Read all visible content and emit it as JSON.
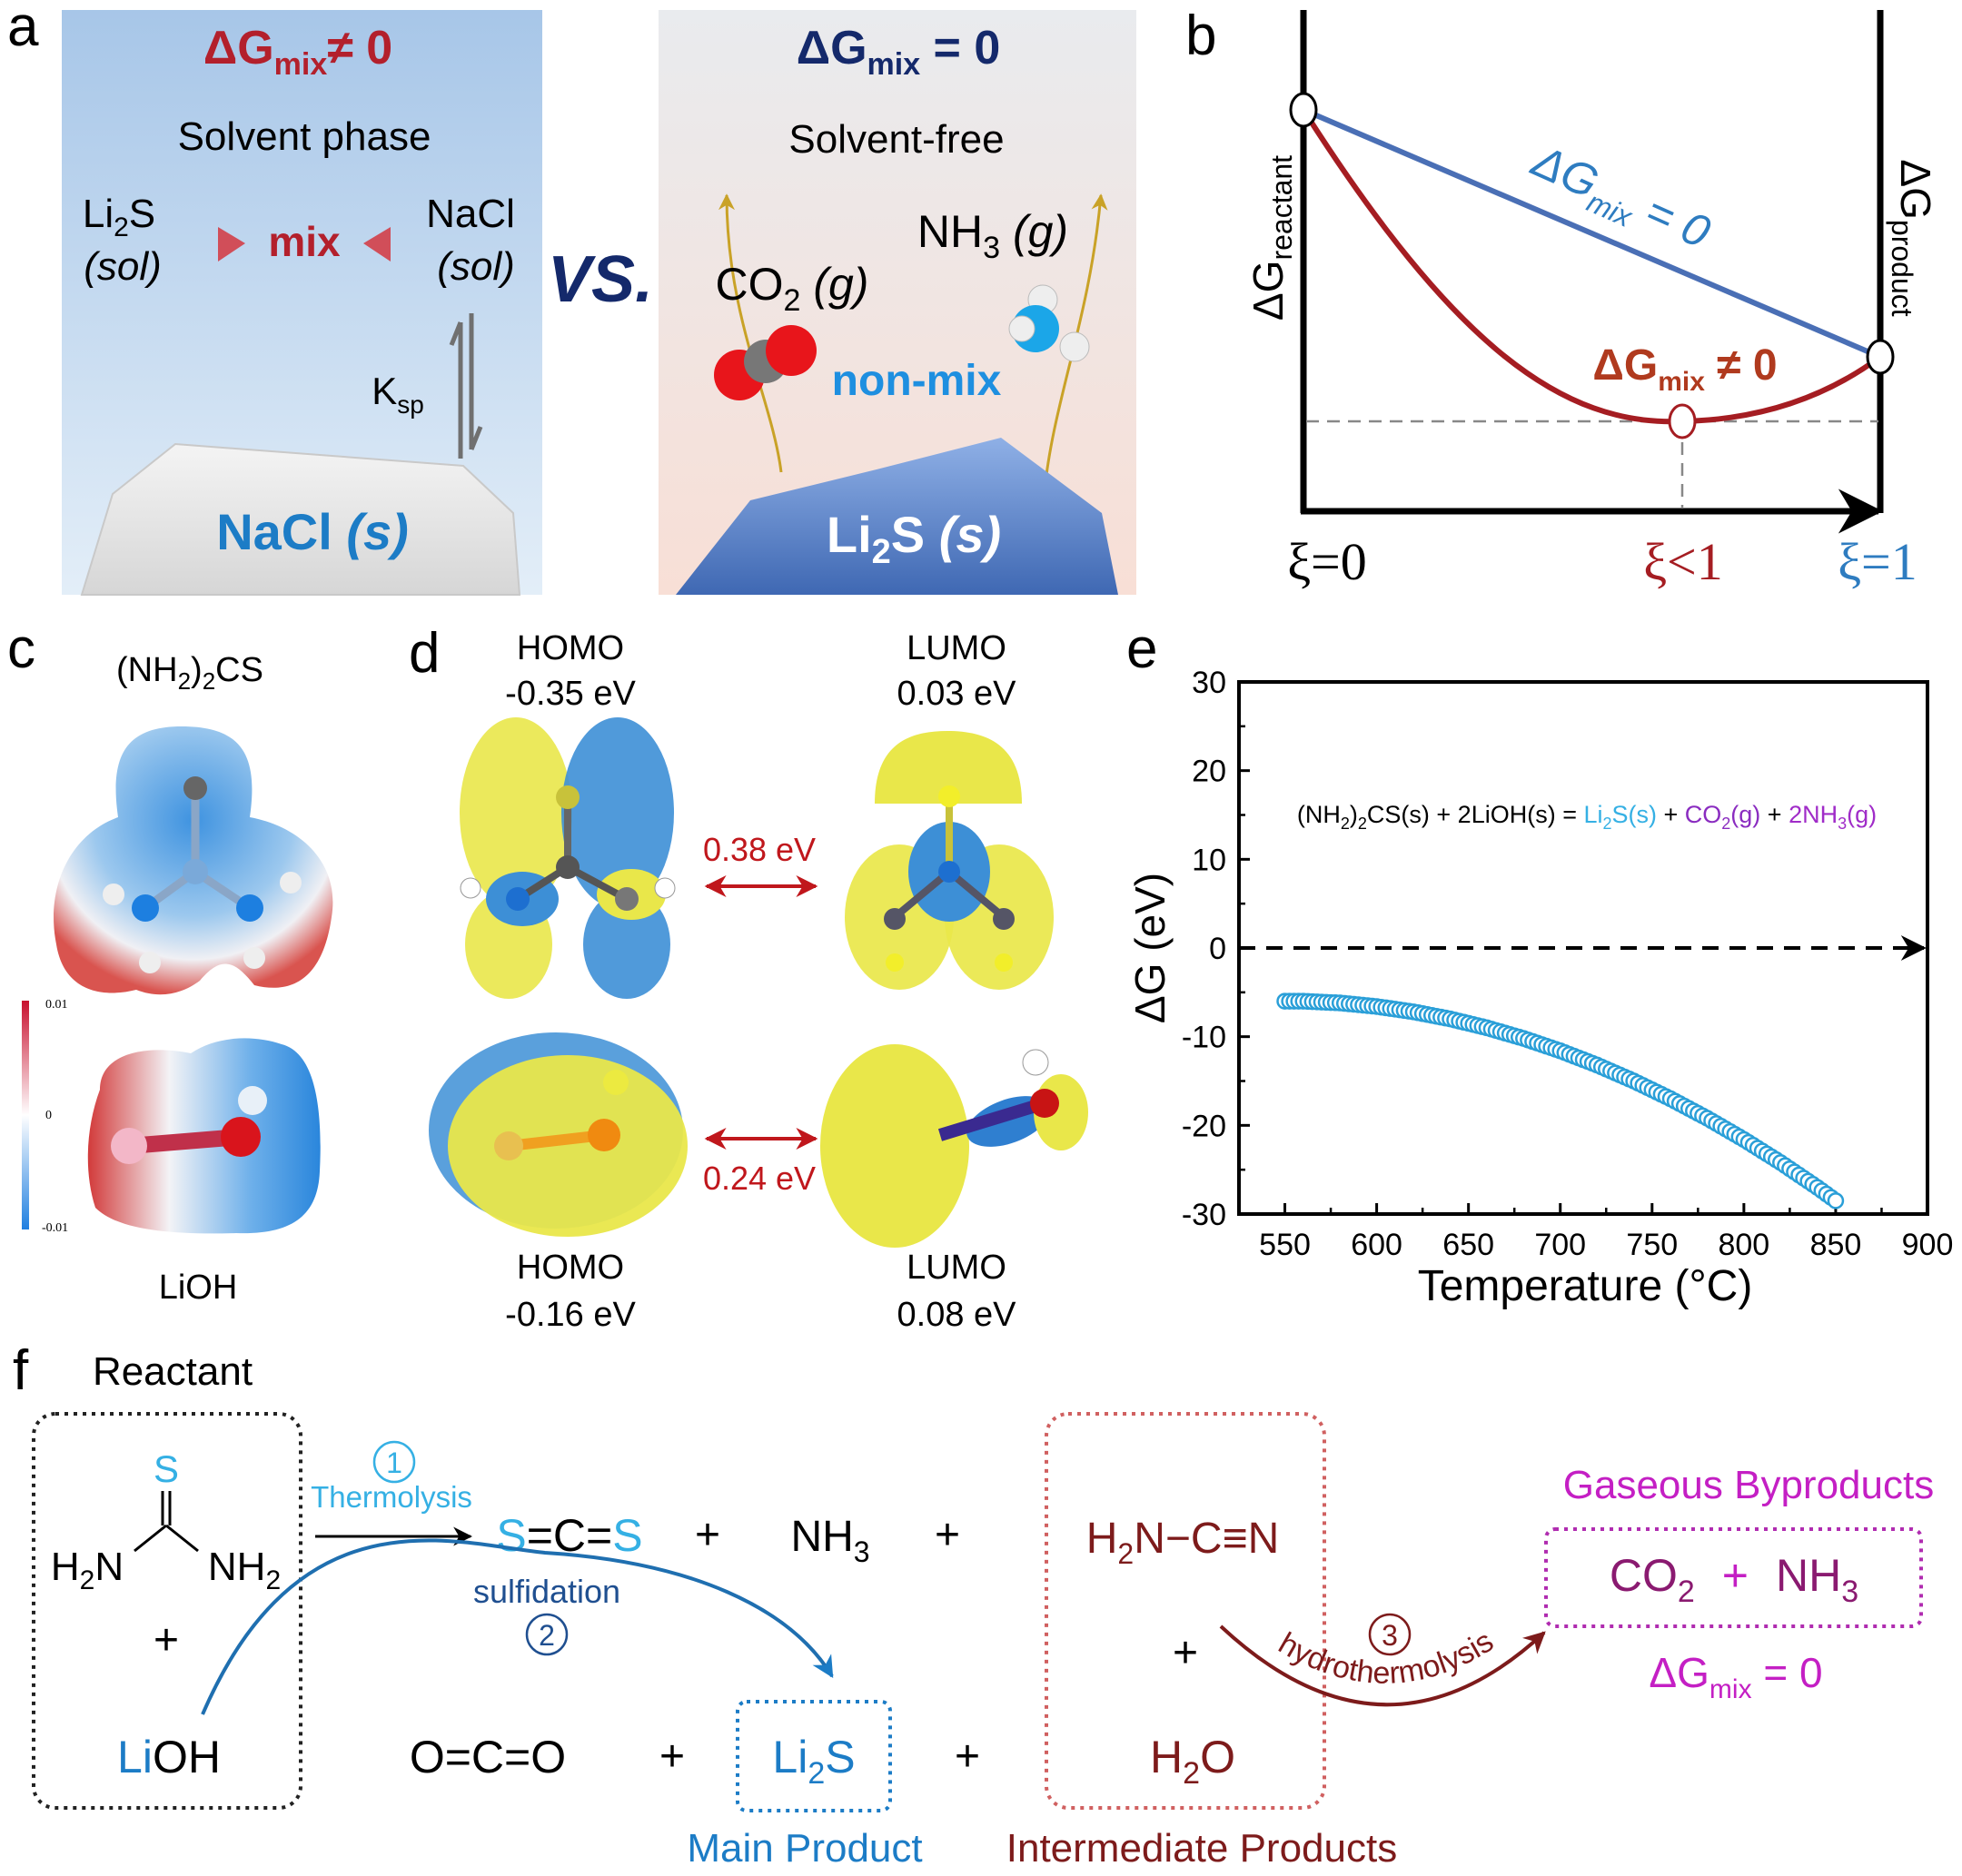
{
  "panel_labels": {
    "a": "a",
    "b": "b",
    "c": "c",
    "d": "d",
    "e": "e",
    "f": "f"
  },
  "colors": {
    "red": "#b3202c",
    "navy": "#14296b",
    "blue": "#1c7cc6",
    "cyan": "#35b0e4",
    "dark_red": "#7d1b1b",
    "magenta": "#c41fc4",
    "curve_blue": "#4a6fb5",
    "curve_red": "#a51d22",
    "marker": "#2a9fd8"
  },
  "panel_a": {
    "left": {
      "dg": "ΔG",
      "dg_sub": "mix",
      "dg_rest": "≠ 0",
      "phase": "Solvent phase",
      "li2s_a": "Li",
      "li2s_sub": "2",
      "li2s_b": "S",
      "sol_left": "(sol)",
      "mix": "mix",
      "nacl": "NaCl",
      "sol_right": "(sol)",
      "k": "K",
      "k_sub": "sp",
      "solid_name": "NaCl ",
      "solid_state": "(s)"
    },
    "vs": "VS.",
    "right": {
      "dg": "ΔG",
      "dg_sub": "mix",
      "dg_rest": " = 0",
      "phase": "Solvent-free",
      "co2_a": "CO",
      "co2_sub": "2",
      "co2_state": " (g)",
      "nh3_a": "NH",
      "nh3_sub": "3",
      "nh3_state": " (g)",
      "nonmix": "non-mix",
      "solid_a": "Li",
      "solid_sub": "2",
      "solid_b": "S ",
      "solid_state": "(s)"
    }
  },
  "panel_b": {
    "reactant_main": "ΔG",
    "reactant_sub": "reactant",
    "product_main": "ΔG",
    "product_sub": "product",
    "line_blue": {
      "main": "ΔG",
      "sub": "mix",
      "rest": " = 0"
    },
    "line_red": {
      "main": "ΔG",
      "sub": "mix",
      "rest": " ≠ 0"
    },
    "xi0": "ξ=0",
    "xi_lt1": "ξ<1",
    "xi1": "ξ=1"
  },
  "panel_c": {
    "mol1_a": "(NH",
    "mol1_sub1": "2",
    "mol1_b": ")",
    "mol1_sub2": "2",
    "mol1_c": "CS",
    "mol2": "LiOH",
    "colorbar": {
      "max": "0.01",
      "mid": "0",
      "min": "-0.01"
    }
  },
  "panel_d": {
    "top": {
      "homo": "HOMO",
      "homo_e": "-0.35 eV",
      "lumo": "LUMO",
      "lumo_e": "0.03 eV",
      "gap": "0.38 eV"
    },
    "bottom": {
      "homo": "HOMO",
      "homo_e": "-0.16 eV",
      "lumo": "LUMO",
      "lumo_e": "0.08 eV",
      "gap": "0.24 eV"
    }
  },
  "chart_data": {
    "type": "scatter",
    "xlabel": "Temperature (°C)",
    "ylabel": "ΔG (eV)",
    "xlim": [
      525,
      900
    ],
    "ylim": [
      -30,
      30
    ],
    "xticks": [
      550,
      600,
      650,
      700,
      750,
      800,
      850,
      900
    ],
    "yticks": [
      -30,
      -20,
      -10,
      0,
      10,
      20,
      30
    ],
    "reference_line": {
      "y": 0,
      "style": "dashed",
      "arrow": true
    },
    "annotation": {
      "a": "(NH",
      "sub1": "2",
      "b": ")",
      "sub2": "2",
      "c": "CS(s) + 2LiOH(s) = ",
      "li": "Li",
      "li_sub": "2",
      "li_b": "S(s)",
      "p1": " + ",
      "co": "CO",
      "co_sub": "2",
      "co_b": "(g)",
      "p2": " + ",
      "nh": "2NH",
      "nh_sub": "3",
      "nh_b": "(g)"
    },
    "grid": false,
    "marker": "open-circle",
    "x": [
      550,
      560,
      570,
      580,
      590,
      600,
      610,
      620,
      630,
      640,
      650,
      660,
      670,
      680,
      690,
      700,
      710,
      720,
      730,
      740,
      750,
      760,
      770,
      780,
      790,
      800,
      810,
      820,
      830,
      840,
      850
    ],
    "y": [
      -6.0,
      -6.0,
      -6.1,
      -6.2,
      -6.4,
      -6.6,
      -6.9,
      -7.2,
      -7.6,
      -8.0,
      -8.5,
      -9.0,
      -9.6,
      -10.2,
      -10.9,
      -11.6,
      -12.4,
      -13.2,
      -14.1,
      -15.0,
      -16.0,
      -17.0,
      -18.1,
      -19.2,
      -20.4,
      -21.6,
      -22.9,
      -24.2,
      -25.6,
      -27.0,
      -28.5
    ]
  },
  "panel_f": {
    "reactant": "Reactant",
    "thiourea": {
      "s": "S",
      "h2n_a": "H",
      "h2n_sub": "2",
      "h2n_b": "N",
      "nh2_a": "NH",
      "nh2_sub": "2"
    },
    "plus": "+",
    "lioh_li": "Li",
    "lioh_oh": "OH",
    "step1": {
      "num": "1",
      "label": "Thermolysis"
    },
    "step2": {
      "num": "2",
      "label": "sulfidation"
    },
    "step3": {
      "num": "3",
      "label": "hydrothermolysis"
    },
    "cs2": {
      "s1": "S",
      "c": "=C=",
      "s2": "S"
    },
    "nh3_a": "NH",
    "nh3_sub": "3",
    "co2_linear": "O=C=O",
    "li2s_a": "Li",
    "li2s_sub": "2",
    "li2s_b": "S",
    "cyanamide_a": "H",
    "cyanamide_sub": "2",
    "cyanamide_b": "N−C≡N",
    "h2o_a": "H",
    "h2o_sub": "2",
    "h2o_b": "O",
    "gaseous_title": "Gaseous Byproducts",
    "gas_co_a": "CO",
    "gas_co_sub": "2",
    "gas_plus": "+",
    "gas_nh_a": "NH",
    "gas_nh_sub": "3",
    "gas_dg": "ΔG",
    "gas_dg_sub": "mix",
    "gas_dg_rest": " = 0",
    "main_product": "Main Product",
    "intermediate_products": "Intermediate Products"
  }
}
